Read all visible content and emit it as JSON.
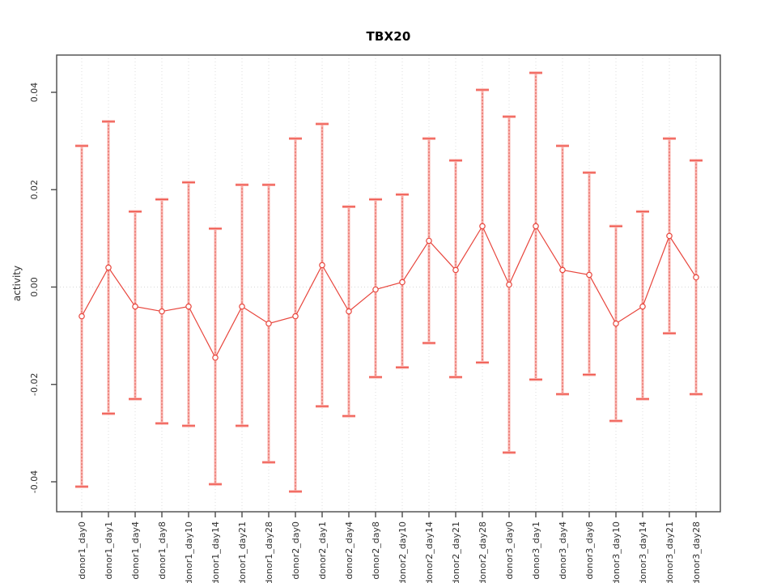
{
  "chart_data": {
    "type": "line",
    "subtype": "points-with-error-bars",
    "title": "TBX20",
    "xlabel": "",
    "ylabel": "activity",
    "legend": "none",
    "grid": "vertical dotted gridline at each category; dotted horizontal line at y=0",
    "ylim": [
      -0.046,
      0.048
    ],
    "y_ticks": [
      0.04,
      0.02,
      0.0,
      -0.02,
      -0.04
    ],
    "y_tick_labels": [
      "0.04",
      "0.02",
      "0.00",
      "-0.02",
      "-0.04"
    ],
    "categories": [
      "donor1_day0",
      "donor1_day1",
      "donor1_day4",
      "donor1_day8",
      "donor1_day10",
      "donor1_day14",
      "donor1_day21",
      "donor1_day28",
      "donor2_day0",
      "donor2_day1",
      "donor2_day4",
      "donor2_day8",
      "donor2_day10",
      "donor2_day14",
      "donor2_day21",
      "donor2_day28",
      "donor3_day0",
      "donor3_day1",
      "donor3_day4",
      "donor3_day8",
      "donor3_day10",
      "donor3_day14",
      "donor3_day21",
      "donor3_day28"
    ],
    "series": [
      {
        "name": "activity",
        "center": [
          -0.006,
          0.004,
          -0.004,
          -0.005,
          -0.004,
          -0.0145,
          -0.004,
          -0.0075,
          -0.006,
          0.0045,
          -0.005,
          -0.0005,
          0.001,
          0.0095,
          0.0035,
          0.0125,
          0.0005,
          0.0125,
          0.0035,
          0.0025,
          -0.0075,
          -0.004,
          0.0105,
          0.002
        ],
        "upper": [
          0.029,
          0.034,
          0.0155,
          0.018,
          0.0215,
          0.012,
          0.021,
          0.021,
          0.0305,
          0.0335,
          0.0165,
          0.018,
          0.019,
          0.0305,
          0.026,
          0.0405,
          0.035,
          0.044,
          0.029,
          0.0235,
          0.0125,
          0.0155,
          0.0305,
          0.026
        ],
        "lower": [
          -0.041,
          -0.026,
          -0.023,
          -0.028,
          -0.0285,
          -0.0405,
          -0.0285,
          -0.036,
          -0.042,
          -0.0245,
          -0.0265,
          -0.0185,
          -0.0165,
          -0.0115,
          -0.0185,
          -0.0155,
          -0.034,
          -0.019,
          -0.022,
          -0.018,
          -0.0275,
          -0.023,
          -0.0095,
          -0.022
        ]
      }
    ],
    "colors": {
      "point_line": "#e8463d",
      "bar_fill": "#f9b0ab",
      "bar_dotted": "#e05a52",
      "cap": "#ef5349",
      "grid": "#dedede",
      "zero_line": "#d8d8d8",
      "frame": "#4a4a4a",
      "tick_text": "#303030",
      "title_text": "#000000"
    }
  }
}
